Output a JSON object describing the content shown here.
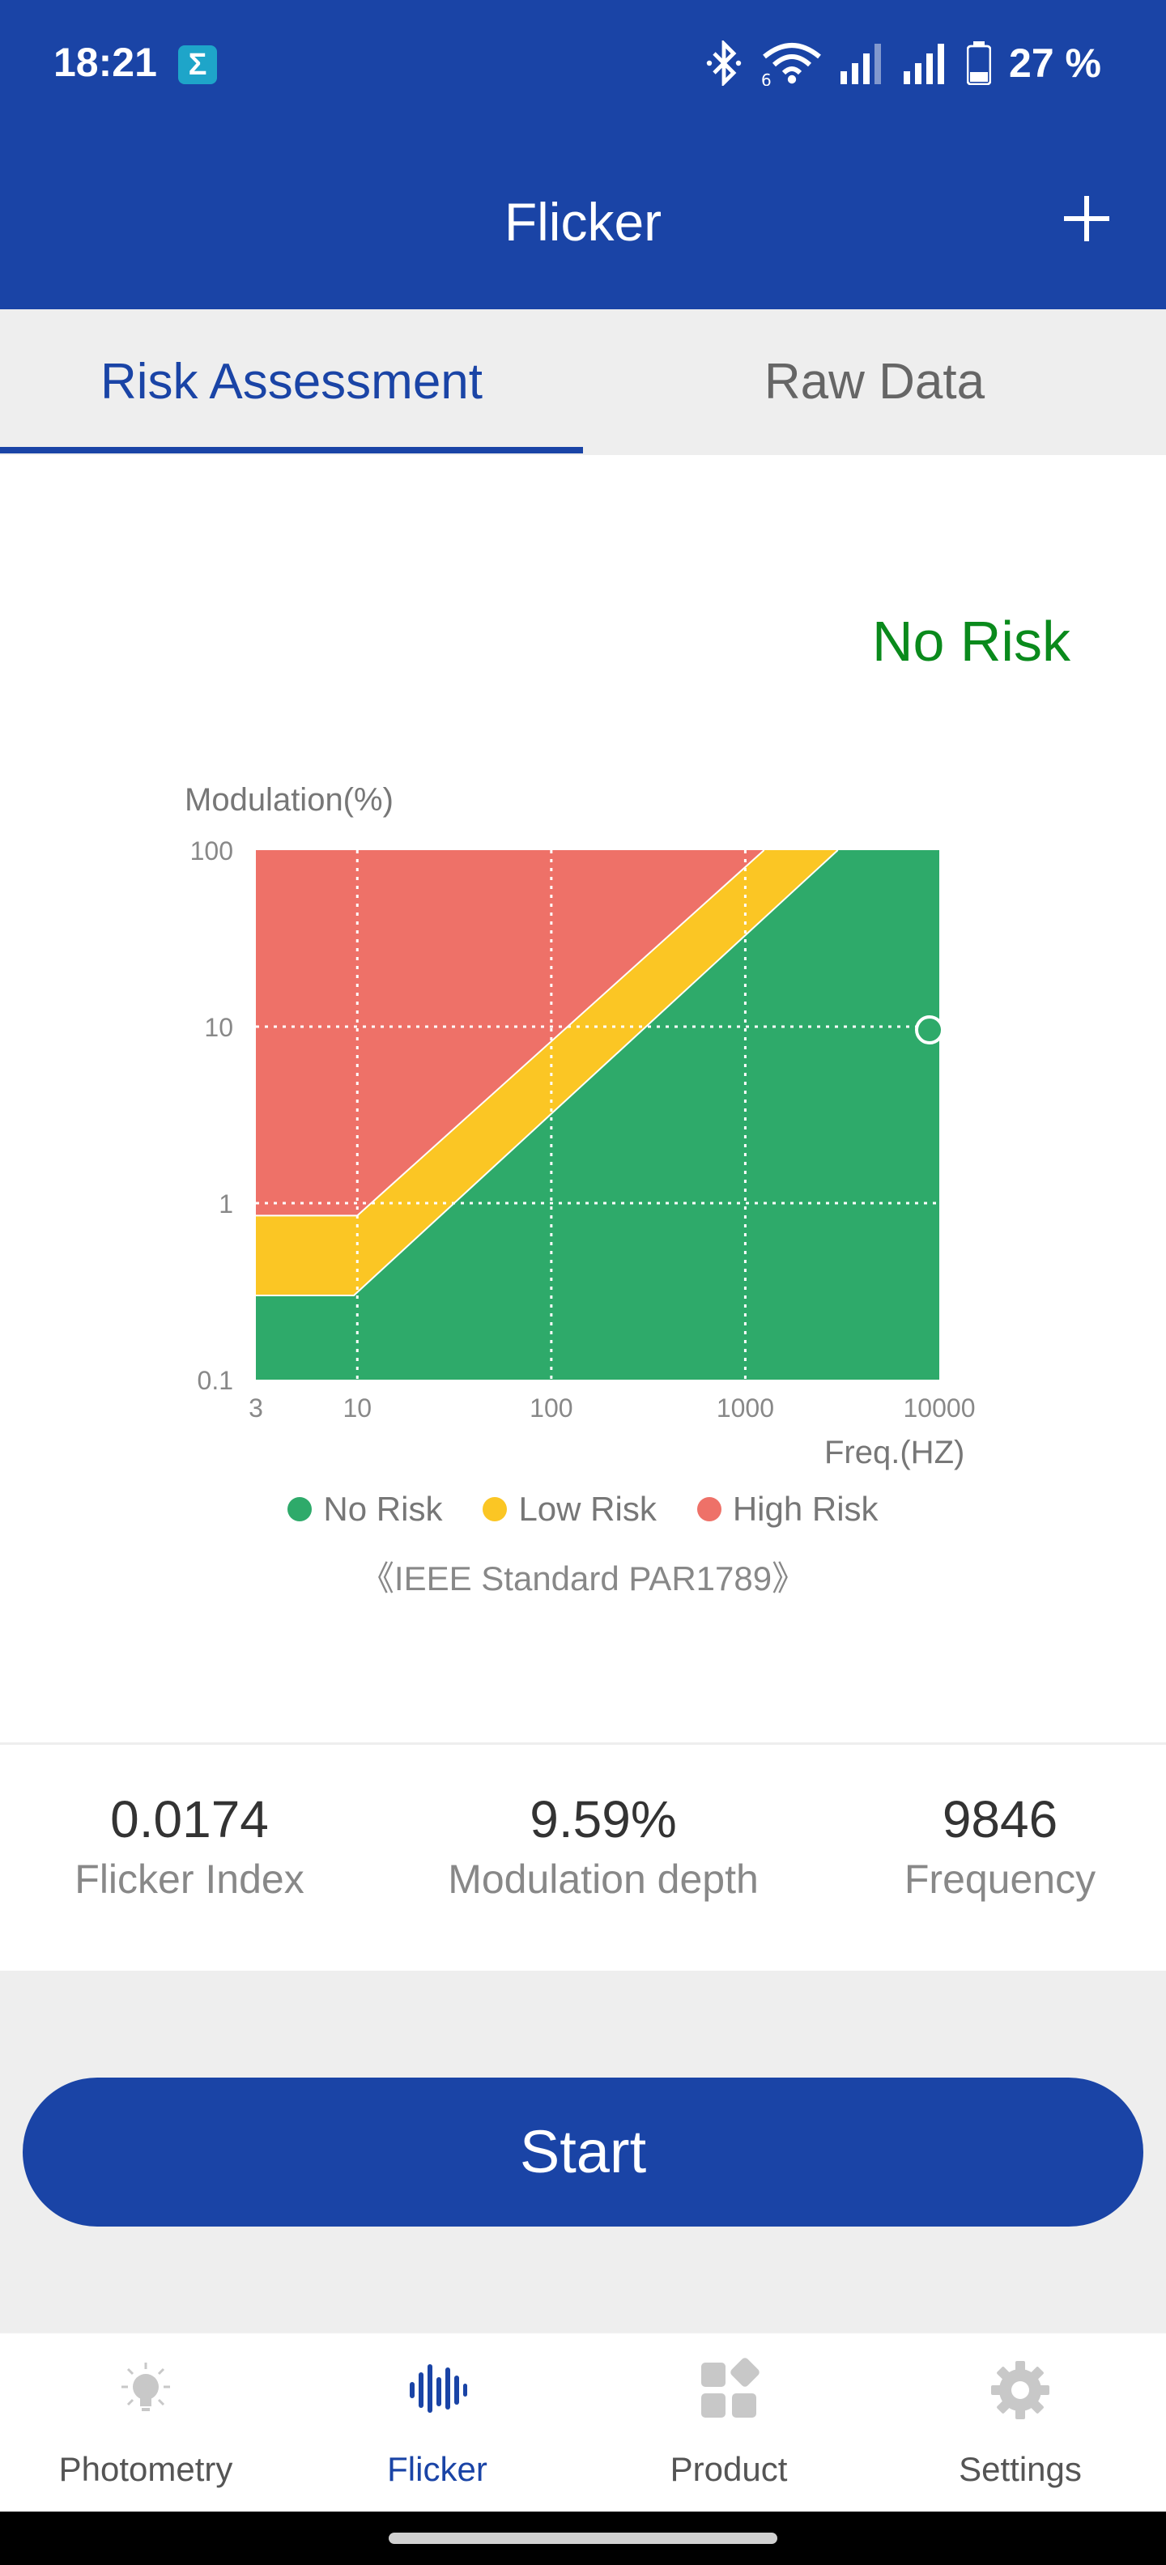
{
  "status_bar": {
    "time": "18:21",
    "app_badge": "Σ",
    "network_label": "6",
    "battery": "27 %"
  },
  "header": {
    "title": "Flicker",
    "add_icon": "plus-icon"
  },
  "tabs": [
    {
      "label": "Risk Assessment",
      "active": true
    },
    {
      "label": "Raw Data",
      "active": false
    }
  ],
  "result": {
    "verdict": "No Risk",
    "verdict_color": "#0a8a1c"
  },
  "chart_data": {
    "type": "area",
    "ylabel": "Modulation(%)",
    "xlabel": "Freq.(HZ)",
    "x_scale": "log",
    "y_scale": "log",
    "xlim": [
      3,
      10000
    ],
    "ylim": [
      0.1,
      100
    ],
    "x_ticks": [
      "3",
      "10",
      "100",
      "1000",
      "10000"
    ],
    "y_ticks": [
      "100",
      "10",
      "1",
      "0.1"
    ],
    "grid": true,
    "regions": [
      {
        "name": "No Risk",
        "color": "#2eaa6a",
        "boundary": [
          [
            3,
            0.3
          ],
          [
            9.6,
            0.3
          ],
          [
            3000,
            100
          ]
        ]
      },
      {
        "name": "Low Risk",
        "color": "#fbc624",
        "boundary": [
          [
            3,
            0.85
          ],
          [
            10,
            0.85
          ],
          [
            1250,
            100
          ]
        ]
      },
      {
        "name": "High Risk",
        "color": "#ee7168"
      }
    ],
    "point": {
      "x": 9846,
      "y": 9.59
    }
  },
  "legend": [
    {
      "label": "No Risk",
      "color": "#2eaa6a"
    },
    {
      "label": "Low Risk",
      "color": "#fbc624"
    },
    {
      "label": "High Risk",
      "color": "#ee7168"
    }
  ],
  "standard": "《IEEE Standard PAR1789》",
  "stats": [
    {
      "value": "0.0174",
      "label": "Flicker Index"
    },
    {
      "value": "9.59%",
      "label": "Modulation depth"
    },
    {
      "value": "9846",
      "label": "Frequency"
    }
  ],
  "start_button": "Start",
  "bottom_nav": [
    {
      "label": "Photometry",
      "icon": "lightbulb-icon",
      "active": false
    },
    {
      "label": "Flicker",
      "icon": "waveform-icon",
      "active": true
    },
    {
      "label": "Product",
      "icon": "grid-icon",
      "active": false
    },
    {
      "label": "Settings",
      "icon": "gear-icon",
      "active": false
    }
  ]
}
